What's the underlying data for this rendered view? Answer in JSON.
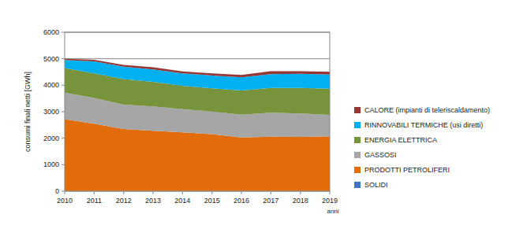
{
  "chart_data": {
    "type": "area",
    "stacked": true,
    "y_label": "consumi finali netti [GWh]",
    "x_label": "anni",
    "x": [
      2010,
      2011,
      2012,
      2013,
      2014,
      2015,
      2016,
      2017,
      2018,
      2019
    ],
    "xlim": [
      2010,
      2019
    ],
    "xticks": [
      2010,
      2011,
      2012,
      2013,
      2014,
      2015,
      2016,
      2017,
      2018,
      2019
    ],
    "ylim": [
      0,
      6000
    ],
    "yticks": [
      0,
      1000,
      2000,
      3000,
      4000,
      5000,
      6000
    ],
    "grid": true,
    "legend": "right",
    "series": [
      {
        "name": "SOLIDI",
        "color": "#4472c4",
        "values": [
          5,
          5,
          5,
          5,
          5,
          5,
          5,
          5,
          5,
          5
        ]
      },
      {
        "name": "PRODOTTI PETROLIFERI",
        "color": "#e36c0a",
        "values": [
          2715,
          2545,
          2345,
          2275,
          2215,
          2145,
          2025,
          2055,
          2045,
          2065
        ]
      },
      {
        "name": "GASSOSI",
        "color": "#a6a6a6",
        "values": [
          1000,
          970,
          920,
          920,
          880,
          860,
          860,
          900,
          880,
          810
        ]
      },
      {
        "name": "ENERGIA ELETTRICA",
        "color": "#77933c",
        "values": [
          930,
          930,
          960,
          930,
          880,
          870,
          910,
          940,
          970,
          990
        ]
      },
      {
        "name": "RINNOVABILI TERMICHE (usi diretti)",
        "color": "#00b0f0",
        "values": [
          300,
          450,
          470,
          470,
          470,
          490,
          500,
          520,
          530,
          530
        ]
      },
      {
        "name": "CALORE (impianti di teleriscaldamento)",
        "color": "#953735",
        "values": [
          50,
          60,
          70,
          80,
          70,
          80,
          90,
          110,
          100,
          110
        ]
      }
    ]
  }
}
